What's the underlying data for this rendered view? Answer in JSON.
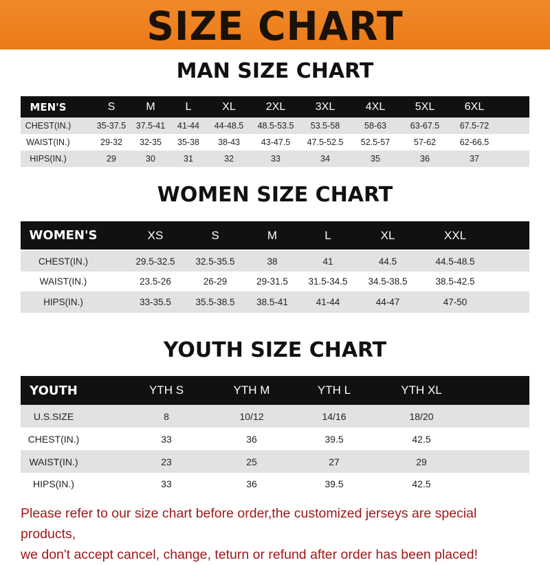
{
  "banner": {
    "title": "SIZE CHART",
    "color": "#ec7a18"
  },
  "men": {
    "title": "MAN SIZE CHART",
    "header": [
      "MEN'S",
      "S",
      "M",
      "L",
      "XL",
      "2XL",
      "3XL",
      "4XL",
      "5XL",
      "6XL"
    ],
    "rows": [
      [
        "CHEST(IN.)",
        "35-37.5",
        "37.5-41",
        "41-44",
        "44-48.5",
        "48.5-53.5",
        "53.5-58",
        "58-63",
        "63-67.5",
        "67.5-72"
      ],
      [
        "WAIST(IN.)",
        "29-32",
        "32-35",
        "35-38",
        "38-43",
        "43-47.5",
        "47.5-52.5",
        "52.5-57",
        "57-62",
        "62-66.5"
      ],
      [
        "HIPS(IN.)",
        "29",
        "30",
        "31",
        "32",
        "33",
        "34",
        "35",
        "36",
        "37"
      ]
    ]
  },
  "women": {
    "title": "WOMEN SIZE CHART",
    "header": [
      "WOMEN'S",
      "XS",
      "S",
      "M",
      "L",
      "XL",
      "XXL"
    ],
    "rows": [
      [
        "CHEST(IN.)",
        "29.5-32.5",
        "32.5-35.5",
        "38",
        "41",
        "44.5",
        "44.5-48.5"
      ],
      [
        "WAIST(IN.)",
        "23.5-26",
        "26-29",
        "29-31.5",
        "31.5-34.5",
        "34.5-38.5",
        "38.5-42.5"
      ],
      [
        "HIPS(IN.)",
        "33-35.5",
        "35.5-38.5",
        "38.5-41",
        "41-44",
        "44-47",
        "47-50"
      ]
    ]
  },
  "youth": {
    "title": "YOUTH SIZE CHART",
    "header": [
      "YOUTH",
      "YTH S",
      "YTH M",
      "YTH L",
      "YTH XL"
    ],
    "rows": [
      [
        "U.S.SIZE",
        "8",
        "10/12",
        "14/16",
        "18/20"
      ],
      [
        "CHEST(IN.)",
        "33",
        "36",
        "39.5",
        "42.5"
      ],
      [
        "WAIST(IN.)",
        "23",
        "25",
        "27",
        "29"
      ],
      [
        "HIPS(IN.)",
        "33",
        "36",
        "39.5",
        "42.5"
      ]
    ]
  },
  "notice": {
    "line1": "Please refer to our size chart before order,the customized jerseys are special products,",
    "line2": "we don't accept cancel, change, teturn or refund after order has been placed!",
    "color": "#a01818"
  }
}
